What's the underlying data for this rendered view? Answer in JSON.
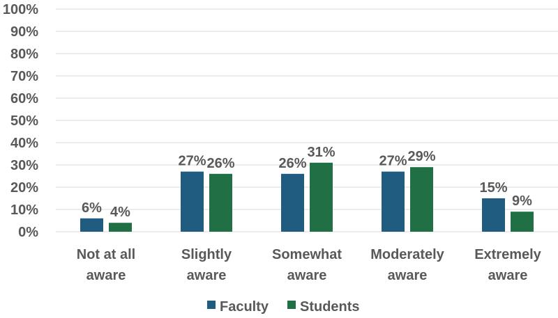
{
  "chart_data": {
    "type": "bar",
    "title": "",
    "xlabel": "",
    "ylabel": "",
    "ylim": [
      0,
      100
    ],
    "y_ticks": [
      "0%",
      "10%",
      "20%",
      "30%",
      "40%",
      "50%",
      "60%",
      "70%",
      "80%",
      "90%",
      "100%"
    ],
    "categories": [
      [
        "Not at all",
        "aware"
      ],
      [
        "Slightly",
        "aware"
      ],
      [
        "Somewhat",
        "aware"
      ],
      [
        "Moderately",
        "aware"
      ],
      [
        "Extremely",
        "aware"
      ]
    ],
    "series": [
      {
        "name": "Faculty",
        "color": "#1f5c7f",
        "values": [
          6,
          27,
          26,
          27,
          15
        ],
        "labels": [
          "6%",
          "27%",
          "26%",
          "27%",
          "15%"
        ]
      },
      {
        "name": "Students",
        "color": "#217045",
        "values": [
          4,
          26,
          31,
          29,
          9
        ],
        "labels": [
          "4%",
          "26%",
          "31%",
          "29%",
          "9%"
        ]
      }
    ],
    "grid": true,
    "legend_position": "bottom"
  }
}
